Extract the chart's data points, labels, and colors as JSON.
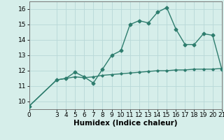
{
  "title": "",
  "xlabel": "Humidex (Indice chaleur)",
  "line1_x": [
    0,
    3,
    4,
    5,
    6,
    7,
    8,
    9,
    10,
    11,
    12,
    13,
    14,
    15,
    16,
    17,
    18,
    19,
    20,
    21
  ],
  "line1_y": [
    9.7,
    11.4,
    11.5,
    11.9,
    11.6,
    11.2,
    12.1,
    13.0,
    13.3,
    15.0,
    15.25,
    15.1,
    15.8,
    16.1,
    14.7,
    13.7,
    13.7,
    14.4,
    14.3,
    12.1
  ],
  "line2_x": [
    0,
    3,
    4,
    5,
    6,
    7,
    8,
    9,
    10,
    11,
    12,
    13,
    14,
    15,
    16,
    17,
    18,
    19,
    20,
    21
  ],
  "line2_y": [
    9.7,
    11.4,
    11.5,
    11.6,
    11.55,
    11.6,
    11.7,
    11.75,
    11.8,
    11.85,
    11.9,
    11.95,
    12.0,
    12.0,
    12.05,
    12.05,
    12.1,
    12.1,
    12.1,
    12.15
  ],
  "line_color": "#2e7d6e",
  "bg_color": "#d6eeea",
  "grid_color": "#b8d8d8",
  "ylim": [
    9.5,
    16.5
  ],
  "xlim": [
    0,
    21
  ],
  "yticks": [
    10,
    11,
    12,
    13,
    14,
    15,
    16
  ],
  "xticks": [
    0,
    3,
    4,
    5,
    6,
    7,
    8,
    9,
    10,
    11,
    12,
    13,
    14,
    15,
    16,
    17,
    18,
    19,
    20,
    21
  ],
  "marker": "D",
  "marker_size": 2.5,
  "linewidth": 1.0,
  "label_fontsize": 7.5,
  "tick_fontsize": 6.5
}
